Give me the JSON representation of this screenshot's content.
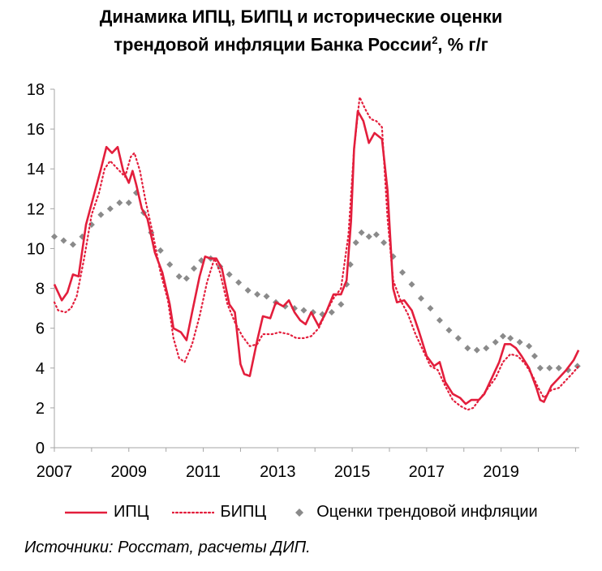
{
  "title": {
    "line1": "Динамика ИПЦ, БИПЦ и исторические оценки",
    "line2": "трендовой инфляции Банка России",
    "sup": "2",
    "suffix": ", % г/г"
  },
  "source": "Источники: Росстат, расчеты ДИП.",
  "colors": {
    "cpi": "#e31e3c",
    "core": "#e31e3c",
    "trend": "#8a8a8a"
  },
  "chart_data": {
    "type": "line",
    "title": "Динамика ИПЦ, БИПЦ и исторические оценки трендовой инфляции Банка России², % г/г",
    "xlabel": "",
    "ylabel": "",
    "xlim": [
      2007,
      2021.1
    ],
    "ylim": [
      0,
      18
    ],
    "yticks": [
      0,
      2,
      4,
      6,
      8,
      10,
      12,
      14,
      16,
      18
    ],
    "xticks": [
      "2007",
      "2009",
      "2011",
      "2013",
      "2015",
      "2017",
      "2019"
    ],
    "grid": false,
    "legend": "bottom",
    "series": [
      {
        "name": "ИПЦ",
        "style": "solid",
        "points": [
          [
            2007.0,
            8.2
          ],
          [
            2007.2,
            7.4
          ],
          [
            2007.35,
            7.8
          ],
          [
            2007.5,
            8.7
          ],
          [
            2007.65,
            8.6
          ],
          [
            2007.85,
            11.2
          ],
          [
            2008.05,
            12.6
          ],
          [
            2008.25,
            14.0
          ],
          [
            2008.4,
            15.1
          ],
          [
            2008.55,
            14.8
          ],
          [
            2008.7,
            15.1
          ],
          [
            2008.85,
            13.9
          ],
          [
            2009.0,
            13.3
          ],
          [
            2009.1,
            13.9
          ],
          [
            2009.2,
            13.2
          ],
          [
            2009.35,
            12.0
          ],
          [
            2009.5,
            11.5
          ],
          [
            2009.7,
            9.8
          ],
          [
            2009.9,
            8.8
          ],
          [
            2010.1,
            7.2
          ],
          [
            2010.2,
            6.0
          ],
          [
            2010.4,
            5.8
          ],
          [
            2010.55,
            5.4
          ],
          [
            2010.7,
            6.8
          ],
          [
            2010.9,
            8.6
          ],
          [
            2011.05,
            9.6
          ],
          [
            2011.2,
            9.5
          ],
          [
            2011.35,
            9.5
          ],
          [
            2011.5,
            9.0
          ],
          [
            2011.7,
            7.2
          ],
          [
            2011.85,
            6.8
          ],
          [
            2012.0,
            4.2
          ],
          [
            2012.1,
            3.7
          ],
          [
            2012.25,
            3.6
          ],
          [
            2012.45,
            5.4
          ],
          [
            2012.6,
            6.6
          ],
          [
            2012.8,
            6.5
          ],
          [
            2012.95,
            7.3
          ],
          [
            2013.15,
            7.1
          ],
          [
            2013.3,
            7.4
          ],
          [
            2013.45,
            6.8
          ],
          [
            2013.6,
            6.4
          ],
          [
            2013.75,
            6.2
          ],
          [
            2013.9,
            6.8
          ],
          [
            2014.1,
            6.1
          ],
          [
            2014.3,
            6.8
          ],
          [
            2014.5,
            7.7
          ],
          [
            2014.7,
            7.7
          ],
          [
            2014.85,
            8.4
          ],
          [
            2014.97,
            11.4
          ],
          [
            2015.05,
            15.0
          ],
          [
            2015.15,
            16.9
          ],
          [
            2015.3,
            16.4
          ],
          [
            2015.45,
            15.3
          ],
          [
            2015.6,
            15.8
          ],
          [
            2015.8,
            15.5
          ],
          [
            2015.95,
            12.9
          ],
          [
            2016.1,
            8.0
          ],
          [
            2016.2,
            7.3
          ],
          [
            2016.4,
            7.4
          ],
          [
            2016.6,
            6.9
          ],
          [
            2016.8,
            5.8
          ],
          [
            2017.0,
            4.6
          ],
          [
            2017.2,
            4.1
          ],
          [
            2017.35,
            4.3
          ],
          [
            2017.5,
            3.3
          ],
          [
            2017.7,
            2.7
          ],
          [
            2017.9,
            2.5
          ],
          [
            2018.05,
            2.2
          ],
          [
            2018.2,
            2.4
          ],
          [
            2018.4,
            2.4
          ],
          [
            2018.55,
            2.7
          ],
          [
            2018.75,
            3.5
          ],
          [
            2018.95,
            4.3
          ],
          [
            2019.1,
            5.2
          ],
          [
            2019.25,
            5.2
          ],
          [
            2019.4,
            5.0
          ],
          [
            2019.55,
            4.6
          ],
          [
            2019.75,
            4.0
          ],
          [
            2019.95,
            3.0
          ],
          [
            2020.05,
            2.4
          ],
          [
            2020.15,
            2.3
          ],
          [
            2020.35,
            3.1
          ],
          [
            2020.55,
            3.5
          ],
          [
            2020.75,
            3.9
          ],
          [
            2020.95,
            4.4
          ],
          [
            2021.08,
            4.9
          ]
        ]
      },
      {
        "name": "БИПЦ",
        "style": "dotted",
        "points": [
          [
            2007.0,
            7.3
          ],
          [
            2007.1,
            6.9
          ],
          [
            2007.3,
            6.8
          ],
          [
            2007.45,
            7.0
          ],
          [
            2007.6,
            7.6
          ],
          [
            2007.8,
            9.5
          ],
          [
            2008.0,
            11.7
          ],
          [
            2008.2,
            12.8
          ],
          [
            2008.35,
            14.0
          ],
          [
            2008.5,
            14.4
          ],
          [
            2008.7,
            14.0
          ],
          [
            2008.9,
            13.6
          ],
          [
            2009.05,
            14.6
          ],
          [
            2009.15,
            14.8
          ],
          [
            2009.3,
            13.9
          ],
          [
            2009.45,
            12.4
          ],
          [
            2009.65,
            10.7
          ],
          [
            2009.85,
            8.8
          ],
          [
            2010.05,
            7.4
          ],
          [
            2010.2,
            5.5
          ],
          [
            2010.35,
            4.5
          ],
          [
            2010.5,
            4.3
          ],
          [
            2010.7,
            5.2
          ],
          [
            2010.9,
            6.6
          ],
          [
            2011.1,
            8.3
          ],
          [
            2011.3,
            9.5
          ],
          [
            2011.45,
            8.8
          ],
          [
            2011.65,
            7.2
          ],
          [
            2011.85,
            6.3
          ],
          [
            2012.05,
            5.6
          ],
          [
            2012.25,
            5.1
          ],
          [
            2012.45,
            5.2
          ],
          [
            2012.6,
            5.7
          ],
          [
            2012.85,
            5.7
          ],
          [
            2013.05,
            5.8
          ],
          [
            2013.3,
            5.7
          ],
          [
            2013.5,
            5.5
          ],
          [
            2013.7,
            5.5
          ],
          [
            2013.9,
            5.6
          ],
          [
            2014.1,
            6.0
          ],
          [
            2014.3,
            6.8
          ],
          [
            2014.5,
            7.5
          ],
          [
            2014.7,
            8.0
          ],
          [
            2014.9,
            10.7
          ],
          [
            2015.05,
            15.0
          ],
          [
            2015.2,
            17.6
          ],
          [
            2015.35,
            17.0
          ],
          [
            2015.5,
            16.5
          ],
          [
            2015.65,
            16.4
          ],
          [
            2015.8,
            16.1
          ],
          [
            2015.95,
            11.5
          ],
          [
            2016.1,
            8.4
          ],
          [
            2016.3,
            7.4
          ],
          [
            2016.5,
            6.7
          ],
          [
            2016.7,
            5.7
          ],
          [
            2016.9,
            4.9
          ],
          [
            2017.1,
            4.1
          ],
          [
            2017.3,
            3.9
          ],
          [
            2017.5,
            3.1
          ],
          [
            2017.7,
            2.4
          ],
          [
            2017.9,
            2.1
          ],
          [
            2018.1,
            1.9
          ],
          [
            2018.25,
            2.0
          ],
          [
            2018.45,
            2.5
          ],
          [
            2018.65,
            3.0
          ],
          [
            2018.85,
            3.5
          ],
          [
            2019.05,
            4.3
          ],
          [
            2019.25,
            4.7
          ],
          [
            2019.45,
            4.6
          ],
          [
            2019.65,
            4.2
          ],
          [
            2019.85,
            3.6
          ],
          [
            2020.0,
            3.0
          ],
          [
            2020.15,
            2.5
          ],
          [
            2020.35,
            2.9
          ],
          [
            2020.55,
            3.0
          ],
          [
            2020.75,
            3.4
          ],
          [
            2020.95,
            3.8
          ],
          [
            2021.08,
            4.1
          ]
        ]
      },
      {
        "name": "Оценки трендовой инфляции",
        "style": "diamond-markers",
        "points": [
          [
            2007.0,
            10.6
          ],
          [
            2007.25,
            10.4
          ],
          [
            2007.5,
            10.2
          ],
          [
            2007.75,
            10.6
          ],
          [
            2008.0,
            11.2
          ],
          [
            2008.25,
            11.7
          ],
          [
            2008.5,
            12.0
          ],
          [
            2008.75,
            12.3
          ],
          [
            2009.0,
            12.3
          ],
          [
            2009.2,
            12.8
          ],
          [
            2009.4,
            11.8
          ],
          [
            2009.6,
            10.8
          ],
          [
            2009.85,
            9.9
          ],
          [
            2010.1,
            9.2
          ],
          [
            2010.35,
            8.6
          ],
          [
            2010.55,
            8.5
          ],
          [
            2010.75,
            9.0
          ],
          [
            2010.95,
            9.4
          ],
          [
            2011.2,
            9.5
          ],
          [
            2011.45,
            9.1
          ],
          [
            2011.7,
            8.7
          ],
          [
            2011.95,
            8.3
          ],
          [
            2012.2,
            7.9
          ],
          [
            2012.45,
            7.7
          ],
          [
            2012.7,
            7.6
          ],
          [
            2012.95,
            7.3
          ],
          [
            2013.2,
            7.1
          ],
          [
            2013.45,
            7.0
          ],
          [
            2013.7,
            6.9
          ],
          [
            2013.95,
            6.8
          ],
          [
            2014.2,
            6.7
          ],
          [
            2014.45,
            6.8
          ],
          [
            2014.7,
            7.2
          ],
          [
            2014.85,
            8.2
          ],
          [
            2014.95,
            9.2
          ],
          [
            2015.1,
            10.3
          ],
          [
            2015.25,
            10.8
          ],
          [
            2015.45,
            10.6
          ],
          [
            2015.65,
            10.7
          ],
          [
            2015.85,
            10.3
          ],
          [
            2016.1,
            9.6
          ],
          [
            2016.35,
            8.8
          ],
          [
            2016.6,
            8.2
          ],
          [
            2016.85,
            7.5
          ],
          [
            2017.1,
            7.0
          ],
          [
            2017.35,
            6.4
          ],
          [
            2017.6,
            5.9
          ],
          [
            2017.85,
            5.5
          ],
          [
            2018.1,
            5.0
          ],
          [
            2018.35,
            4.9
          ],
          [
            2018.6,
            5.0
          ],
          [
            2018.85,
            5.3
          ],
          [
            2019.05,
            5.6
          ],
          [
            2019.25,
            5.5
          ],
          [
            2019.5,
            5.3
          ],
          [
            2019.75,
            5.1
          ],
          [
            2019.9,
            4.6
          ],
          [
            2020.05,
            4.0
          ],
          [
            2020.3,
            4.0
          ],
          [
            2020.55,
            4.0
          ],
          [
            2020.8,
            3.9
          ],
          [
            2021.05,
            4.1
          ]
        ]
      }
    ]
  }
}
